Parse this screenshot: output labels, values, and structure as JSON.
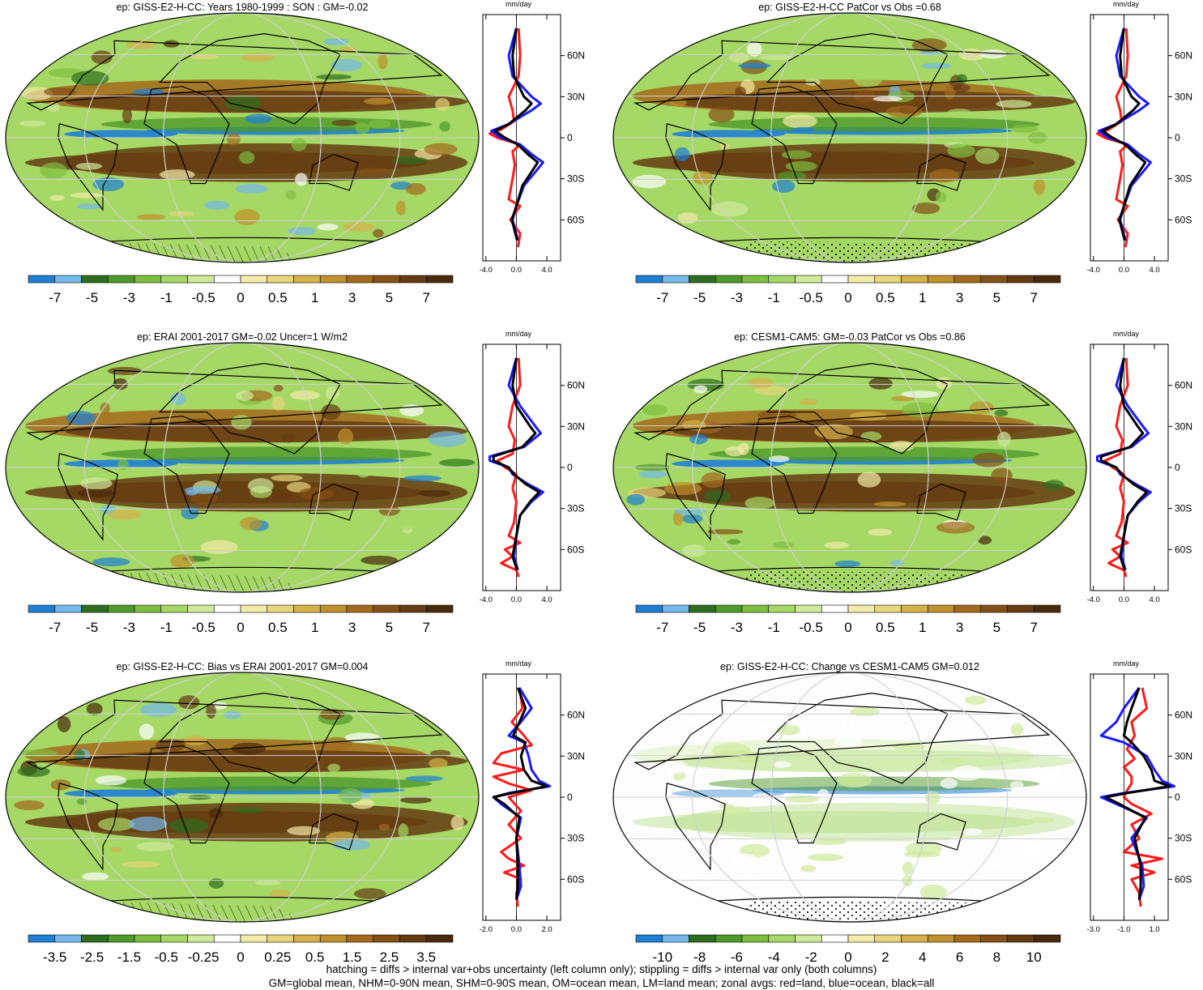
{
  "footer": {
    "line1": "hatching = diffs > internal var+obs uncertainty (left column only); stippling = diffs > internal var only (both columns)",
    "line2": "GM=global mean, NHM=0-90N mean, SHM=0-90S mean, OM=ocean mean, LM=land mean; zonal avgs: red=land, blue=ocean, black=all"
  },
  "chart_data": [
    {
      "type": "heatmap",
      "title": "ep: GISS-E2-H-CC: Years 1980-1999 : SON : GM=-0.02",
      "colorbar": {
        "labels": [
          "-7",
          "-5",
          "-3",
          "-1",
          "-0.5",
          "0",
          "0.5",
          "1",
          "3",
          "5",
          "7"
        ]
      },
      "hatching": true,
      "zonal_profile": {
        "type": "line",
        "xlabel": "mm/day",
        "xticks": [
          "-4.0",
          "0.0",
          "4.0"
        ],
        "yticks": [
          "60N",
          "30N",
          "0",
          "30S",
          "60S"
        ],
        "series": [
          {
            "color": "#ff1a1a",
            "lat": [
              80,
              60,
              45,
              30,
              20,
              12,
              6,
              3,
              0,
              -5,
              -10,
              -20,
              -30,
              -45,
              -50,
              -60,
              -70,
              -80
            ],
            "values": [
              0.3,
              0.5,
              0.3,
              -1.0,
              -0.5,
              -0.3,
              -2.0,
              -3.5,
              -2.5,
              0.5,
              -0.5,
              -0.2,
              -0.5,
              -1.0,
              0.5,
              -0.8,
              0.5,
              0.2
            ]
          },
          {
            "color": "#1a1aff",
            "lat": [
              80,
              60,
              45,
              30,
              25,
              20,
              10,
              5,
              0,
              -5,
              -12,
              -18,
              -25,
              -35,
              -50,
              -60,
              -75
            ],
            "values": [
              0.0,
              -1.0,
              -0.5,
              2.0,
              3.2,
              2.0,
              -1.0,
              -3.3,
              -2.0,
              0.5,
              2.0,
              3.5,
              2.5,
              1.0,
              0.0,
              -0.5,
              0.2
            ]
          },
          {
            "color": "#000000",
            "lat": [
              80,
              60,
              45,
              30,
              25,
              20,
              10,
              5,
              0,
              -5,
              -12,
              -18,
              -25,
              -35,
              -50,
              -60,
              -75
            ],
            "values": [
              0.0,
              -0.5,
              -0.3,
              1.0,
              2.0,
              1.2,
              -1.0,
              -2.8,
              -1.5,
              0.2,
              1.5,
              2.8,
              2.0,
              0.8,
              0.0,
              -0.6,
              0.1
            ]
          }
        ]
      }
    },
    {
      "type": "heatmap",
      "title": "ep: GISS-E2-H-CC PatCor vs Obs =0.68",
      "colorbar": {
        "labels": [
          "-7",
          "-5",
          "-3",
          "-1",
          "-0.5",
          "0",
          "0.5",
          "1",
          "3",
          "5",
          "7"
        ]
      },
      "hatching": false,
      "zonal_profile": {
        "type": "line",
        "xlabel": "mm/day",
        "xticks": [
          "-4.0",
          "0.0",
          "4.0"
        ],
        "yticks": [
          "60N",
          "30N",
          "0",
          "30S",
          "60S"
        ],
        "series": [
          {
            "color": "#ff1a1a",
            "lat": [
              80,
              60,
              45,
              30,
              20,
              12,
              6,
              3,
              0,
              -5,
              -10,
              -20,
              -30,
              -45,
              -50,
              -60,
              -70,
              -80
            ],
            "values": [
              0.3,
              0.5,
              0.3,
              -1.0,
              -0.5,
              -0.3,
              -2.0,
              -3.5,
              -2.5,
              0.5,
              -0.5,
              -0.2,
              -0.5,
              -1.0,
              0.5,
              -0.8,
              0.5,
              0.2
            ]
          },
          {
            "color": "#1a1aff",
            "lat": [
              80,
              60,
              45,
              30,
              25,
              20,
              10,
              5,
              0,
              -5,
              -12,
              -18,
              -25,
              -35,
              -50,
              -60,
              -75
            ],
            "values": [
              0.0,
              -1.0,
              -0.5,
              2.0,
              3.2,
              2.0,
              -1.0,
              -3.3,
              -2.0,
              0.5,
              2.0,
              3.5,
              2.5,
              1.0,
              0.0,
              -0.5,
              0.2
            ]
          },
          {
            "color": "#000000",
            "lat": [
              80,
              60,
              45,
              30,
              25,
              20,
              10,
              5,
              0,
              -5,
              -12,
              -18,
              -25,
              -35,
              -50,
              -60,
              -75
            ],
            "values": [
              0.0,
              -0.5,
              -0.3,
              1.0,
              2.0,
              1.2,
              -1.0,
              -2.8,
              -1.5,
              0.2,
              1.5,
              2.8,
              2.0,
              0.8,
              0.0,
              -0.6,
              0.1
            ]
          }
        ]
      }
    },
    {
      "type": "heatmap",
      "title": "ep: ERAI 2001-2017 GM=-0.02 Uncer=1 W/m2",
      "colorbar": {
        "labels": [
          "-7",
          "-5",
          "-3",
          "-1",
          "-0.5",
          "0",
          "0.5",
          "1",
          "3",
          "5",
          "7"
        ]
      },
      "hatching": true,
      "zonal_profile": {
        "type": "line",
        "xlabel": "mm/day",
        "xticks": [
          "-4.0",
          "0.0",
          "4.0"
        ],
        "yticks": [
          "60N",
          "30N",
          "0",
          "30S",
          "60S"
        ],
        "series": [
          {
            "color": "#ff1a1a",
            "lat": [
              80,
              60,
              45,
              30,
              20,
              10,
              5,
              0,
              -5,
              -15,
              -25,
              -40,
              -50,
              -55,
              -60,
              -65,
              -70,
              -75,
              -80
            ],
            "values": [
              0.3,
              0.5,
              -0.5,
              -1.0,
              -0.2,
              -0.5,
              -2.5,
              -1.5,
              0.0,
              -0.5,
              0.0,
              -0.3,
              -1.0,
              0.5,
              -1.5,
              -0.5,
              -2.0,
              0.0,
              0.3
            ]
          },
          {
            "color": "#1a1aff",
            "lat": [
              80,
              60,
              45,
              30,
              25,
              15,
              8,
              5,
              0,
              -5,
              -12,
              -18,
              -25,
              -35,
              -50,
              -65,
              -75
            ],
            "values": [
              0.0,
              -1.0,
              0.5,
              2.5,
              3.2,
              1.0,
              -3.5,
              -3.5,
              -1.0,
              -0.5,
              1.5,
              3.5,
              2.0,
              0.5,
              0.0,
              -0.3,
              0.2
            ]
          },
          {
            "color": "#000000",
            "lat": [
              80,
              60,
              45,
              30,
              25,
              15,
              8,
              5,
              0,
              -5,
              -12,
              -18,
              -25,
              -35,
              -50,
              -65,
              -75
            ],
            "values": [
              0.0,
              -0.5,
              0.0,
              1.8,
              2.5,
              0.8,
              -3.0,
              -3.0,
              -1.0,
              -0.3,
              1.2,
              3.0,
              1.8,
              0.5,
              0.0,
              -0.5,
              0.1
            ]
          }
        ]
      }
    },
    {
      "type": "heatmap",
      "title": "ep: CESM1-CAM5: GM=-0.03 PatCor vs Obs =0.86",
      "colorbar": {
        "labels": [
          "-7",
          "-5",
          "-3",
          "-1",
          "-0.5",
          "0",
          "0.5",
          "1",
          "3",
          "5",
          "7"
        ]
      },
      "hatching": false,
      "zonal_profile": {
        "type": "line",
        "xlabel": "mm/day",
        "xticks": [
          "-4.0",
          "0.0",
          "4.0"
        ],
        "yticks": [
          "60N",
          "30N",
          "0",
          "30S",
          "60S"
        ],
        "series": [
          {
            "color": "#ff1a1a",
            "lat": [
              80,
              60,
              45,
              30,
              20,
              10,
              5,
              0,
              -5,
              -15,
              -25,
              -40,
              -50,
              -55,
              -60,
              -65,
              -70,
              -75,
              -80
            ],
            "values": [
              0.3,
              0.5,
              -0.5,
              -1.0,
              -0.2,
              -0.5,
              -2.5,
              -1.5,
              0.0,
              -0.5,
              0.0,
              -0.3,
              -1.0,
              0.5,
              -1.5,
              -0.5,
              -2.0,
              0.0,
              0.3
            ]
          },
          {
            "color": "#1a1aff",
            "lat": [
              80,
              60,
              45,
              30,
              25,
              15,
              8,
              5,
              0,
              -5,
              -12,
              -18,
              -25,
              -35,
              -50,
              -65,
              -75
            ],
            "values": [
              0.0,
              -1.0,
              0.5,
              2.5,
              3.2,
              1.0,
              -3.5,
              -3.5,
              -1.0,
              -0.5,
              1.5,
              3.5,
              2.0,
              0.5,
              0.0,
              -0.3,
              0.2
            ]
          },
          {
            "color": "#000000",
            "lat": [
              80,
              60,
              45,
              30,
              25,
              15,
              8,
              5,
              0,
              -5,
              -12,
              -18,
              -25,
              -35,
              -50,
              -65,
              -75
            ],
            "values": [
              0.0,
              -0.5,
              0.0,
              1.8,
              2.5,
              0.8,
              -3.0,
              -3.0,
              -1.0,
              -0.3,
              1.2,
              3.0,
              1.8,
              0.5,
              0.0,
              -0.5,
              0.1
            ]
          }
        ]
      }
    },
    {
      "type": "heatmap",
      "title": "ep: GISS-E2-H-CC: Bias vs ERAI 2001-2017  GM=0.004",
      "colorbar": {
        "labels": [
          "-3.5",
          "-2.5",
          "-1.5",
          "-0.5",
          "-0.25",
          "0",
          "0.25",
          "0.5",
          "1.5",
          "2.5",
          "3.5"
        ]
      },
      "hatching": true,
      "zonal_profile": {
        "type": "line",
        "xlabel": "mm/day",
        "xticks": [
          "-2.0",
          "0.0",
          "2.0"
        ],
        "yticks": [
          "60N",
          "30N",
          "0",
          "30S",
          "60S"
        ],
        "series": [
          {
            "color": "#ff1a1a",
            "lat": [
              80,
              65,
              55,
              45,
              38,
              32,
              25,
              20,
              15,
              10,
              5,
              0,
              -10,
              -20,
              -30,
              -40,
              -45,
              -50,
              -55,
              -60,
              -70,
              -80
            ],
            "values": [
              0.2,
              0.4,
              -0.3,
              0.5,
              1.0,
              -1.0,
              -1.5,
              0.5,
              -1.5,
              -0.5,
              1.0,
              -0.5,
              0.3,
              -0.5,
              0.3,
              -1.0,
              -0.5,
              0.5,
              -0.8,
              0.3,
              0.0,
              0.1
            ]
          },
          {
            "color": "#1a1aff",
            "lat": [
              80,
              65,
              55,
              45,
              40,
              30,
              20,
              12,
              8,
              3,
              0,
              -5,
              -15,
              -30,
              -50,
              -65,
              -75
            ],
            "values": [
              0.2,
              1.0,
              0.3,
              -0.5,
              0.5,
              0.8,
              1.0,
              1.5,
              2.2,
              -0.5,
              -1.5,
              -1.0,
              0.3,
              0.0,
              0.2,
              0.3,
              0.0
            ]
          },
          {
            "color": "#000000",
            "lat": [
              80,
              65,
              55,
              45,
              40,
              30,
              20,
              12,
              8,
              3,
              0,
              -5,
              -15,
              -30,
              -50,
              -65,
              -75
            ],
            "values": [
              0.1,
              0.6,
              0.2,
              -0.2,
              0.6,
              0.3,
              0.5,
              1.0,
              2.0,
              -0.3,
              -1.5,
              -0.8,
              0.2,
              0.0,
              0.1,
              0.1,
              0.0
            ]
          }
        ]
      }
    },
    {
      "type": "heatmap",
      "title": "ep: GISS-E2-H-CC: Change vs CESM1-CAM5 GM=0.012",
      "colorbar": {
        "labels": [
          "-10",
          "-8",
          "-6",
          "-4",
          "-2",
          "0",
          "2",
          "4",
          "6",
          "8",
          "10"
        ]
      },
      "hatching": false,
      "zonal_profile": {
        "type": "line",
        "xlabel": "mm/day",
        "xticks": [
          "-3.0",
          "-1.0",
          "1.0"
        ],
        "yticks": [
          "60N",
          "30N",
          "0",
          "30S",
          "60S"
        ],
        "series": [
          {
            "color": "#ff1a1a",
            "lat": [
              80,
              65,
              55,
              45,
              35,
              28,
              22,
              15,
              10,
              5,
              0,
              -5,
              -12,
              -20,
              -30,
              -40,
              -45,
              -50,
              -55,
              -60,
              -70,
              -80
            ],
            "values": [
              0.2,
              0.5,
              -0.5,
              -0.3,
              -0.8,
              -0.3,
              -1.0,
              -0.5,
              -0.5,
              -0.8,
              -1.0,
              -0.5,
              0.8,
              -0.5,
              0.0,
              -1.0,
              1.5,
              -0.5,
              1.0,
              -0.5,
              0.0,
              0.1
            ]
          },
          {
            "color": "#1a1aff",
            "lat": [
              80,
              65,
              55,
              45,
              40,
              30,
              20,
              12,
              8,
              3,
              0,
              -5,
              -15,
              -30,
              -50,
              -65,
              -75
            ],
            "values": [
              0.0,
              -1.0,
              -1.5,
              -2.5,
              -1.0,
              0.5,
              1.0,
              1.5,
              2.3,
              -1.0,
              -2.5,
              -1.5,
              0.5,
              -0.5,
              0.2,
              0.3,
              0.0
            ]
          },
          {
            "color": "#000000",
            "lat": [
              80,
              65,
              55,
              45,
              40,
              30,
              20,
              12,
              8,
              3,
              0,
              -5,
              -15,
              -30,
              -50,
              -65,
              -75
            ],
            "values": [
              0.0,
              -0.5,
              -0.8,
              -1.0,
              -0.5,
              0.3,
              0.8,
              1.0,
              2.0,
              -0.8,
              -2.2,
              -1.3,
              0.4,
              -0.3,
              0.1,
              0.1,
              0.0
            ]
          }
        ]
      }
    }
  ]
}
